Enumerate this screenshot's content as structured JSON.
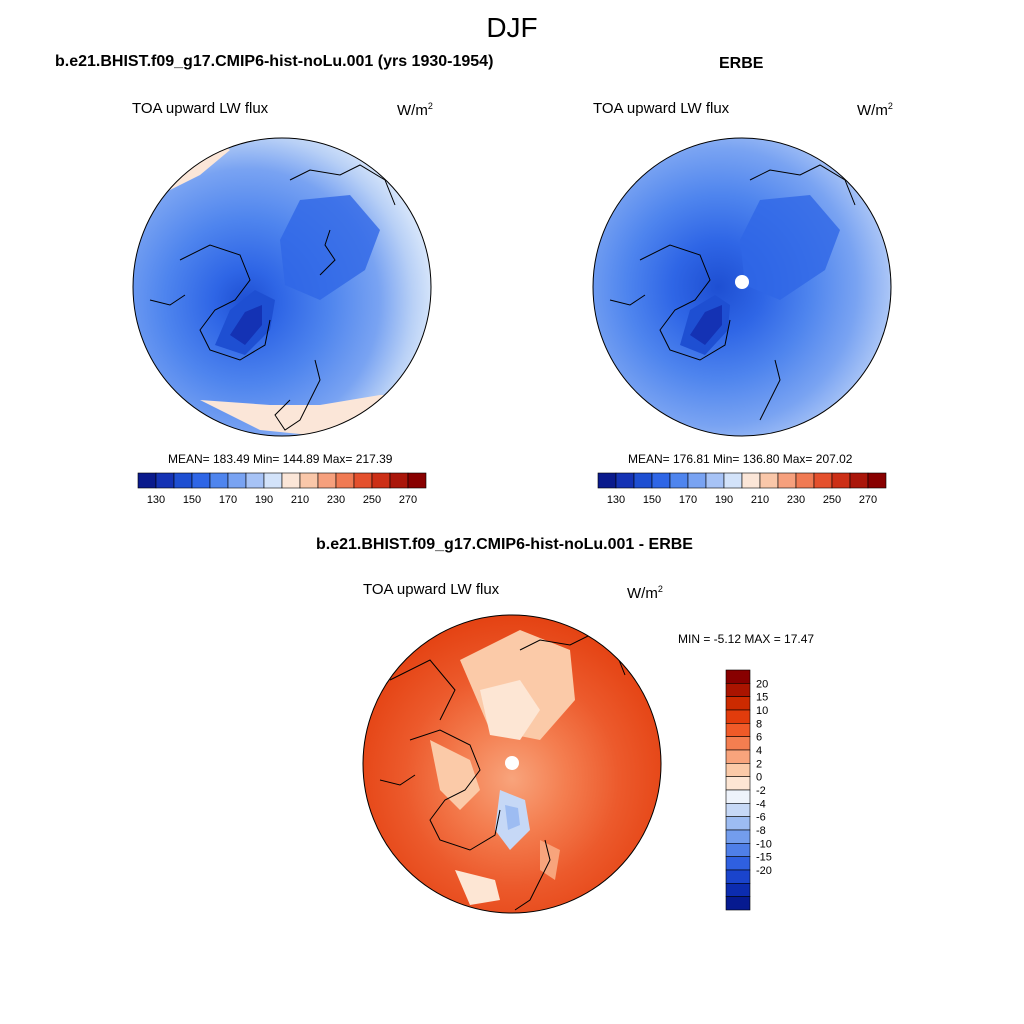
{
  "season_title": "DJF",
  "panels": [
    {
      "id": "model",
      "title": "b.e21.BHIST.f09_g17.CMIP6-hist-noLu.001 (yrs 1930-1954)",
      "variable": "TOA upward LW flux",
      "units_base": "W/m",
      "units_exp": "2",
      "stats": "MEAN= 183.49  Min= 144.89  Max= 217.39"
    },
    {
      "id": "obs",
      "title": "ERBE",
      "variable": "TOA upward LW flux",
      "units_base": "W/m",
      "units_exp": "2",
      "stats": "MEAN= 176.81  Min= 136.80  Max= 207.02"
    },
    {
      "id": "diff",
      "title": "b.e21.BHIST.f09_g17.CMIP6-hist-noLu.001 - ERBE",
      "variable": "TOA upward LW flux",
      "units_base": "W/m",
      "units_exp": "2",
      "stats": "MIN =  -5.12 MAX =  17.47"
    }
  ],
  "colorbar_abs": {
    "colors": [
      "#0a1a8c",
      "#1432b4",
      "#1e4fd2",
      "#2f66e6",
      "#4f85ee",
      "#79a3f2",
      "#a7c3f6",
      "#d3e3fa",
      "#fbe6d8",
      "#f9c7a9",
      "#f6a07d",
      "#f07a53",
      "#e4502d",
      "#cc2f16",
      "#aa160a",
      "#880000"
    ],
    "tick_labels": [
      "130",
      "150",
      "170",
      "190",
      "210",
      "230",
      "250",
      "270"
    ]
  },
  "colorbar_diff": {
    "colors": [
      "#880000",
      "#aa1400",
      "#cc2a00",
      "#e23c0c",
      "#f05a28",
      "#f47e50",
      "#f8a47c",
      "#fbcaa8",
      "#fde6d4",
      "#eef3fb",
      "#c6d8f6",
      "#9dbcf2",
      "#739ded",
      "#4f7fe8",
      "#2f60e0",
      "#1a44cc",
      "#0c2cb0",
      "#061a90"
    ],
    "tick_labels": [
      "20",
      "15",
      "10",
      "8",
      "6",
      "4",
      "2",
      "0",
      "-2",
      "-4",
      "-6",
      "-8",
      "-10",
      "-15",
      "-20"
    ]
  }
}
